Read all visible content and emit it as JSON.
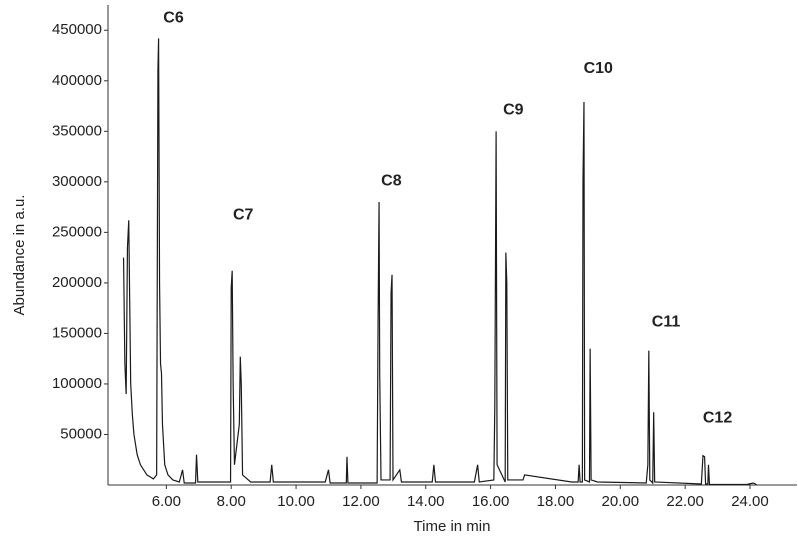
{
  "chart_data": {
    "type": "line",
    "xlabel": "Time in min",
    "ylabel": "Abundance in a.u.",
    "color": "#1a1a1a",
    "xlim": [
      4.2,
      25.45
    ],
    "ylim": [
      0,
      475000
    ],
    "xticks": [
      {
        "value": 6,
        "label": "6.00"
      },
      {
        "value": 8,
        "label": "8.00"
      },
      {
        "value": 10,
        "label": "10.00"
      },
      {
        "value": 12,
        "label": "12.00"
      },
      {
        "value": 14,
        "label": "14.00"
      },
      {
        "value": 16,
        "label": "16.00"
      },
      {
        "value": 18,
        "label": "18.00"
      },
      {
        "value": 20,
        "label": "20.00"
      },
      {
        "value": 22,
        "label": "22.00"
      },
      {
        "value": 24,
        "label": "24.00"
      }
    ],
    "yticks": [
      50000,
      100000,
      150000,
      200000,
      250000,
      300000,
      350000,
      400000,
      450000
    ],
    "x": [
      4.68,
      4.72,
      4.76,
      4.8,
      4.84,
      4.87,
      4.9,
      4.95,
      5.0,
      5.1,
      5.2,
      5.3,
      5.4,
      5.5,
      5.6,
      5.7,
      5.74,
      5.76,
      5.79,
      5.82,
      5.85,
      5.88,
      5.95,
      6.05,
      6.2,
      6.4,
      6.5,
      6.55,
      6.9,
      6.93,
      6.97,
      7.5,
      7.98,
      8.0,
      8.03,
      8.06,
      8.1,
      8.25,
      8.28,
      8.31,
      8.35,
      8.6,
      9.2,
      9.25,
      9.3,
      10.9,
      11.0,
      11.05,
      11.55,
      11.57,
      11.6,
      12.5,
      12.53,
      12.56,
      12.58,
      12.62,
      12.9,
      12.93,
      12.96,
      12.99,
      13.2,
      13.25,
      14.2,
      14.25,
      14.3,
      15.5,
      15.6,
      15.65,
      16.1,
      16.13,
      16.17,
      16.2,
      16.45,
      16.47,
      16.5,
      16.53,
      17.0,
      17.05,
      18.5,
      18.7,
      18.73,
      18.76,
      18.83,
      18.85,
      18.88,
      18.9,
      19.05,
      19.07,
      19.1,
      19.3,
      20.8,
      20.85,
      20.88,
      20.91,
      21.0,
      21.03,
      21.06,
      22.5,
      22.55,
      22.6,
      22.63,
      22.7,
      22.72,
      22.75,
      23.9,
      24.1,
      24.2
    ],
    "y": [
      225000,
      120000,
      90000,
      235000,
      262000,
      180000,
      100000,
      70000,
      50000,
      30000,
      20000,
      15000,
      10000,
      8000,
      6000,
      10000,
      410000,
      442000,
      200000,
      120000,
      110000,
      60000,
      20000,
      10000,
      5000,
      3000,
      15000,
      2000,
      2000,
      30000,
      3000,
      3000,
      3000,
      195000,
      212000,
      100000,
      20000,
      60000,
      127000,
      100000,
      10000,
      3000,
      3000,
      20000,
      3000,
      3000,
      15000,
      2000,
      2000,
      28000,
      2000,
      2000,
      165000,
      280000,
      110000,
      5000,
      5000,
      190000,
      208000,
      5000,
      15000,
      3000,
      3000,
      20000,
      3000,
      3000,
      20000,
      3000,
      5000,
      78000,
      350000,
      20000,
      3000,
      230000,
      200000,
      5000,
      5000,
      10000,
      3000,
      3000,
      20000,
      3000,
      3000,
      302000,
      379000,
      5000,
      3000,
      135000,
      5000,
      3000,
      2000,
      20000,
      133000,
      5000,
      2000,
      72000,
      3000,
      1000,
      29000,
      28000,
      1000,
      1000,
      20000,
      500,
      500,
      2000,
      500
    ],
    "annotations": [
      {
        "text": "C6",
        "x": 6.22,
        "y": 462000
      },
      {
        "text": "C7",
        "x": 8.37,
        "y": 267000
      },
      {
        "text": "C8",
        "x": 12.94,
        "y": 300700
      },
      {
        "text": "C9",
        "x": 16.7,
        "y": 371000
      },
      {
        "text": "C10",
        "x": 19.32,
        "y": 412000
      },
      {
        "text": "C11",
        "x": 21.41,
        "y": 161000
      },
      {
        "text": "C12",
        "x": 23.0,
        "y": 66000
      }
    ]
  }
}
